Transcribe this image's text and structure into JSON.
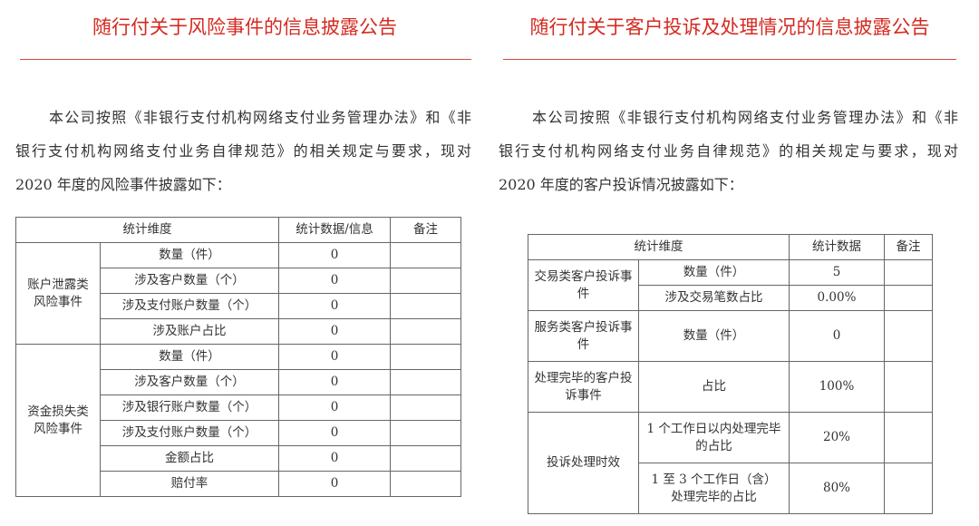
{
  "left": {
    "title": "随行付关于风险事件的信息披露公告",
    "intro_lines": [
      "本公司按照《非银行支付机构网络支付业务管理办法》和《非",
      "银行支付机构网络支付业务自律规范》的相关规定与要求，现对",
      "2020 年度的风险事件披露如下："
    ],
    "table": {
      "headers": [
        "统计维度",
        "统计数据/信息",
        "备注"
      ],
      "groups": [
        {
          "name": "账户泄露类风险事件",
          "rows": [
            {
              "item": "数量（件）",
              "value": "0",
              "note": ""
            },
            {
              "item": "涉及客户数量（个）",
              "value": "0",
              "note": ""
            },
            {
              "item": "涉及支付账户数量（个）",
              "value": "0",
              "note": ""
            },
            {
              "item": "涉及账户占比",
              "value": "0",
              "note": ""
            }
          ]
        },
        {
          "name": "资金损失类风险事件",
          "rows": [
            {
              "item": "数量（件）",
              "value": "0",
              "note": ""
            },
            {
              "item": "涉及客户数量（个）",
              "value": "0",
              "note": ""
            },
            {
              "item": "涉及银行账户数量（个）",
              "value": "0",
              "note": ""
            },
            {
              "item": "涉及支付账户数量（个）",
              "value": "0",
              "note": ""
            },
            {
              "item": "金额占比",
              "value": "0",
              "note": ""
            },
            {
              "item": "赔付率",
              "value": "0",
              "note": ""
            }
          ]
        }
      ]
    }
  },
  "right": {
    "title": "随行付关于客户投诉及处理情况的信息披露公告",
    "intro_lines": [
      "本公司按照《非银行支付机构网络支付业务管理办法》和《非",
      "银行支付机构网络支付业务自律规范》的相关规定与要求，现对",
      "2020 年度的客户投诉情况披露如下："
    ],
    "table": {
      "headers": [
        "统计维度",
        "统计数据",
        "备注"
      ],
      "groups": [
        {
          "name": "交易类客户投诉事件",
          "rows": [
            {
              "item": "数量（件）",
              "value": "5",
              "note": ""
            },
            {
              "item": "涉及交易笔数占比",
              "value": "0.00%",
              "note": ""
            }
          ]
        },
        {
          "name": "服务类客户投诉事件",
          "rows": [
            {
              "item": "数量（件）",
              "value": "0",
              "note": ""
            }
          ]
        },
        {
          "name": "处理完毕的客户投诉事件",
          "rows": [
            {
              "item": "占比",
              "value": "100%",
              "note": ""
            }
          ]
        },
        {
          "name": "投诉处理时效",
          "rows": [
            {
              "item": "1 个工作日以内处理完毕的占比",
              "value": "20%",
              "note": ""
            },
            {
              "item": "1 至 3 个工作日（含）处理完毕的占比",
              "value": "80%",
              "note": ""
            }
          ]
        }
      ]
    }
  }
}
